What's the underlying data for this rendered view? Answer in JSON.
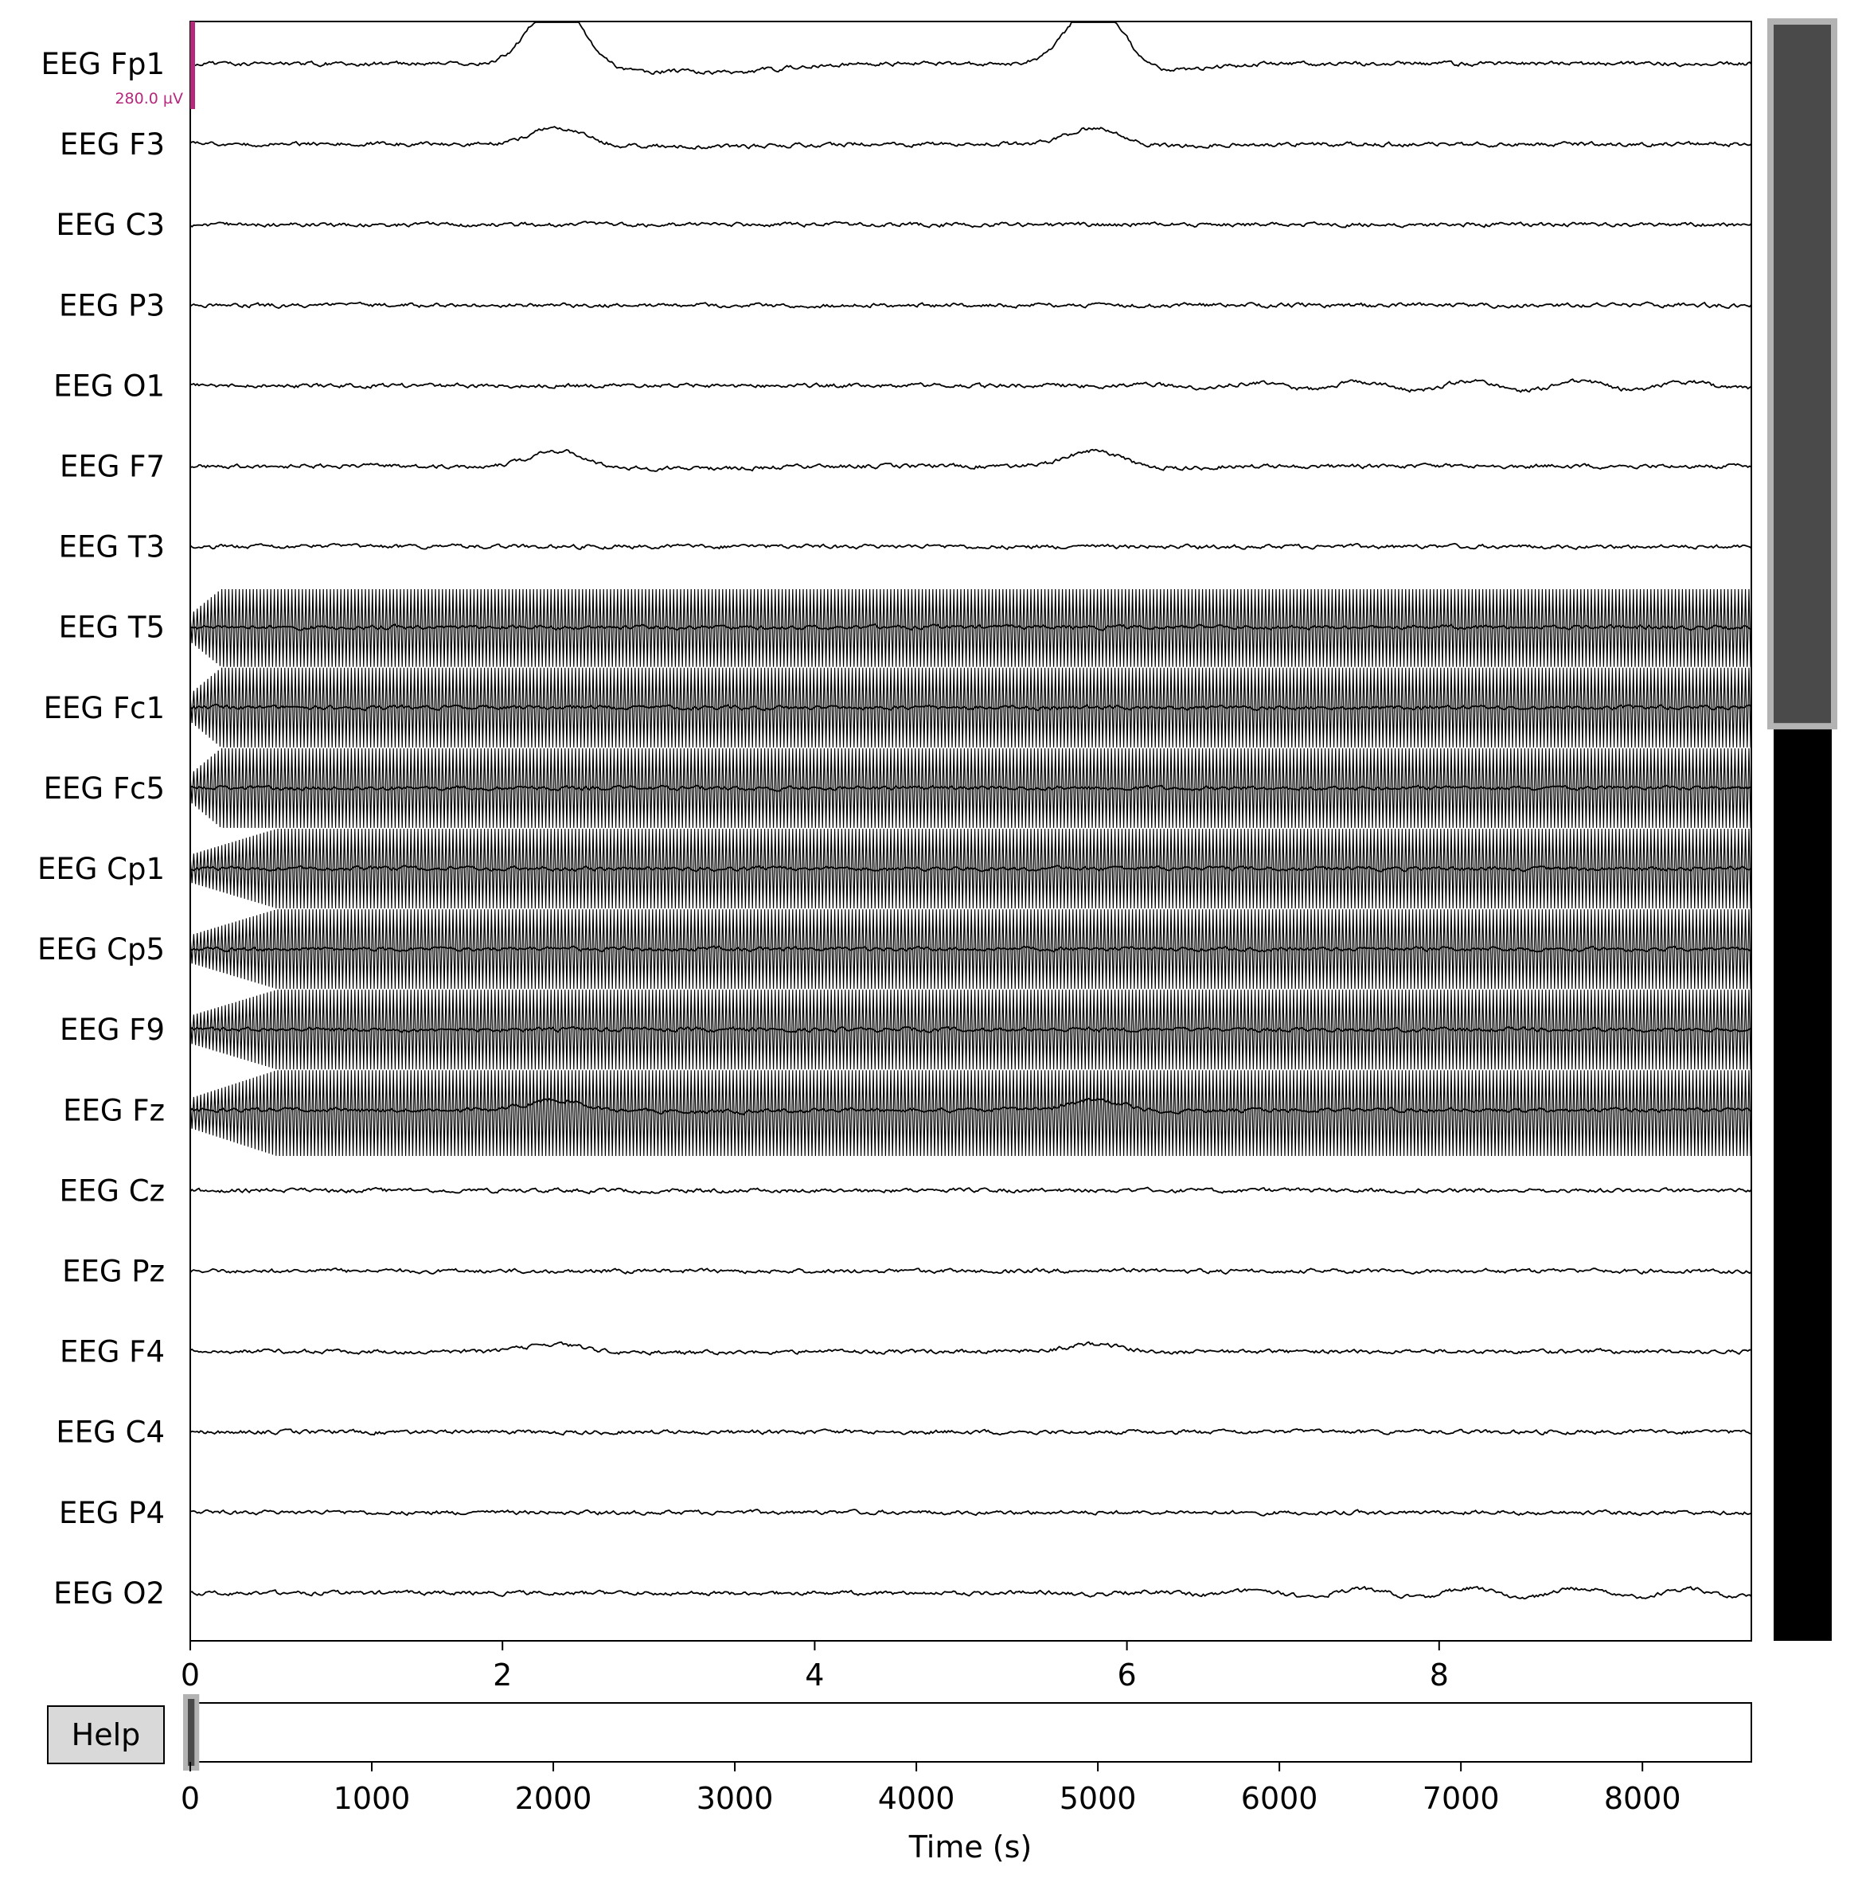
{
  "viewer": {
    "help_label": "Help",
    "scale_bar_label": "280.0 µV",
    "time_axis_label": "Time (s)",
    "colors": {
      "trace": "#000000",
      "scale_bar": "#b5287c",
      "scrollbar_thumb": "#4a4a4a",
      "scrollbar_track": "#000000",
      "help_button_bg": "#d9d9d9"
    },
    "vertical_scrollbar": {
      "visible_fraction": 0.4352,
      "position_fraction": 0.0
    }
  },
  "chart_data": {
    "type": "line",
    "title": "",
    "xlabel": "",
    "ylabel": "",
    "xlim": [
      0,
      10
    ],
    "x_ticks": [
      "0",
      "2",
      "4",
      "6",
      "8"
    ],
    "channels": [
      "EEG Fp1",
      "EEG F3",
      "EEG C3",
      "EEG P3",
      "EEG O1",
      "EEG F7",
      "EEG T3",
      "EEG T5",
      "EEG Fc1",
      "EEG Fc5",
      "EEG Cp1",
      "EEG Cp5",
      "EEG F9",
      "EEG Fz",
      "EEG Cz",
      "EEG Pz",
      "EEG F4",
      "EEG C4",
      "EEG P4",
      "EEG O2"
    ],
    "grid": false,
    "overview": {
      "xlabel": "Time (s)",
      "xlim": [
        0,
        8600
      ],
      "x_ticks": [
        "0",
        "1000",
        "2000",
        "3000",
        "4000",
        "5000",
        "6000",
        "7000",
        "8000"
      ],
      "window_start": 0,
      "window_duration": 10
    }
  }
}
